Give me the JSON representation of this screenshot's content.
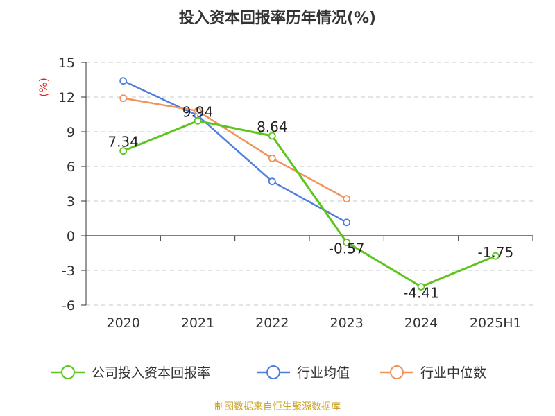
{
  "chart_data": {
    "type": "line",
    "title": "投入资本回报率历年情况(%)",
    "ylabel": "(%)",
    "xlabel": "",
    "categories": [
      "2020",
      "2021",
      "2022",
      "2023",
      "2024",
      "2025H1"
    ],
    "ylim": [
      -6,
      15
    ],
    "yticks": [
      15,
      12,
      9,
      6,
      3,
      0,
      -3,
      -6
    ],
    "grid": true,
    "legend_position": "bottom",
    "series": [
      {
        "name": "公司投入资本回报率",
        "color": "#5ec41e",
        "values": [
          7.34,
          9.94,
          8.64,
          -0.57,
          -4.41,
          -1.75
        ],
        "labels": [
          "7.34",
          "9.94",
          "8.64",
          "-0.57",
          "-4.41",
          "-1.75"
        ]
      },
      {
        "name": "行业均值",
        "color": "#4f7fdd",
        "values": [
          13.4,
          10.4,
          4.7,
          1.15,
          null,
          null
        ]
      },
      {
        "name": "行业中位数",
        "color": "#f2925a",
        "values": [
          11.9,
          10.8,
          6.7,
          3.2,
          null,
          null
        ]
      }
    ]
  },
  "source": "制图数据来自恒生聚源数据库"
}
